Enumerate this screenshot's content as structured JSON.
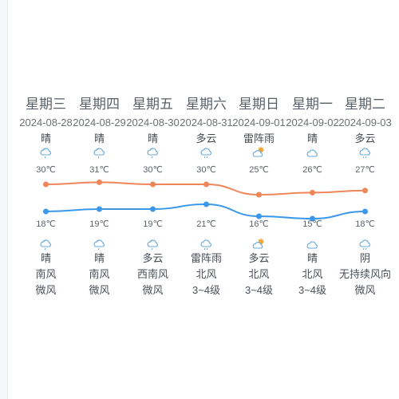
{
  "forecast": {
    "days": [
      {
        "weekday": "星期三",
        "date": "2024-08-28",
        "day_weather": "晴",
        "day_icon": "partly-cloudy-rain-icon",
        "high": "30℃",
        "low": "18℃",
        "night_icon": "partly-cloudy-rain-icon",
        "night_weather": "晴",
        "wind_dir": "南风",
        "wind_level": "微风"
      },
      {
        "weekday": "星期四",
        "date": "2024-08-29",
        "day_weather": "晴",
        "day_icon": "partly-cloudy-rain-icon",
        "high": "31℃",
        "low": "19℃",
        "night_icon": "partly-cloudy-rain-icon",
        "night_weather": "晴",
        "wind_dir": "南风",
        "wind_level": "微风"
      },
      {
        "weekday": "星期五",
        "date": "2024-08-30",
        "day_weather": "晴",
        "day_icon": "partly-cloudy-rain-icon",
        "high": "30℃",
        "low": "19℃",
        "night_icon": "partly-cloudy-rain-icon",
        "night_weather": "多云",
        "wind_dir": "西南风",
        "wind_level": "微风"
      },
      {
        "weekday": "星期六",
        "date": "2024-08-31",
        "day_weather": "多云",
        "day_icon": "cloud-rain-icon",
        "high": "30℃",
        "low": "21℃",
        "night_icon": "cloud-rain-icon",
        "night_weather": "雷阵雨",
        "wind_dir": "北风",
        "wind_level": "3~4级"
      },
      {
        "weekday": "星期日",
        "date": "2024-09-01",
        "day_weather": "雷阵雨",
        "day_icon": "sun-cloud-icon",
        "high": "25℃",
        "low": "16℃",
        "night_icon": "sun-cloud-icon",
        "night_weather": "多云",
        "wind_dir": "北风",
        "wind_level": "3~4级"
      },
      {
        "weekday": "星期一",
        "date": "2024-09-02",
        "day_weather": "晴",
        "day_icon": "cloud-icon",
        "high": "26℃",
        "low": "15℃",
        "night_icon": "cloud-icon",
        "night_weather": "晴",
        "wind_dir": "北风",
        "wind_level": "3~4级"
      },
      {
        "weekday": "星期二",
        "date": "2024-09-03",
        "day_weather": "多云",
        "day_icon": "cloud-rain-icon",
        "high": "27℃",
        "low": "18℃",
        "night_icon": "cloud-rain-icon",
        "night_weather": "阴",
        "wind_dir": "无持续风向",
        "wind_level": "微风"
      }
    ]
  },
  "chart_data": {
    "type": "line",
    "categories": [
      "星期三",
      "星期四",
      "星期五",
      "星期六",
      "星期日",
      "星期一",
      "星期二"
    ],
    "series": [
      {
        "values": [
          30,
          31,
          30,
          30,
          25,
          26,
          27
        ],
        "color": "#f0855a"
      },
      {
        "values": [
          18,
          19,
          19,
          21,
          16,
          15,
          18
        ],
        "color": "#3a97ea"
      }
    ]
  },
  "colors": {
    "high_line": "#f0855a",
    "low_line": "#3a97ea",
    "icon_blue": "#6aa9d8",
    "icon_sun": "#f3a73a"
  }
}
